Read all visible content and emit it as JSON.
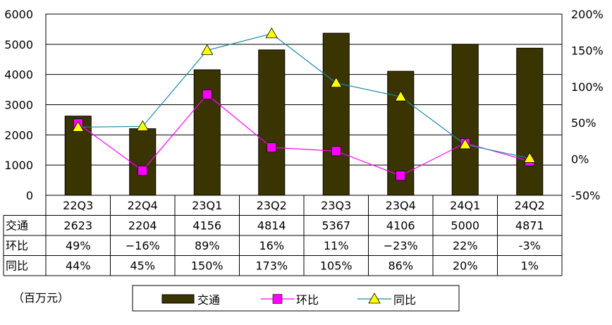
{
  "chart_data": {
    "type": "bar+line",
    "categories": [
      "22Q3",
      "22Q4",
      "23Q1",
      "23Q2",
      "23Q3",
      "23Q4",
      "24Q1",
      "24Q2"
    ],
    "series": [
      {
        "name": "交通",
        "type": "bar",
        "axis": "left",
        "values": [
          2623,
          2204,
          4156,
          4814,
          5367,
          4106,
          5000,
          4871
        ],
        "labels": [
          "2623",
          "2204",
          "4156",
          "4814",
          "5367",
          "4106",
          "5000",
          "4871"
        ],
        "color": "#3a3400"
      },
      {
        "name": "环比",
        "type": "line",
        "axis": "right",
        "marker": "square",
        "values": [
          49,
          -16,
          89,
          16,
          11,
          -23,
          22,
          -3
        ],
        "labels": [
          "49%",
          "−16%",
          "89%",
          "16%",
          "11%",
          "−23%",
          "22%",
          "-3%"
        ],
        "color": "#ff00ff"
      },
      {
        "name": "同比",
        "type": "line",
        "axis": "right",
        "marker": "triangle",
        "values": [
          44,
          45,
          150,
          173,
          105,
          86,
          20,
          1
        ],
        "labels": [
          "44%",
          "45%",
          "150%",
          "173%",
          "105%",
          "86%",
          "20%",
          "1%"
        ],
        "color": "#1a8aa8",
        "marker_color": "#ffff00"
      }
    ],
    "left_axis": {
      "ylim": [
        0,
        6000
      ],
      "ticks": [
        "0",
        "1000",
        "2000",
        "3000",
        "4000",
        "5000",
        "6000"
      ]
    },
    "right_axis": {
      "ylim": [
        -50,
        200
      ],
      "ticks": [
        "-50%",
        "0%",
        "50%",
        "100%",
        "150%",
        "200%"
      ]
    },
    "grid": true,
    "unit_label": "（百万元）",
    "legend": [
      "交通",
      "环比",
      "同比"
    ],
    "legend_position": "bottom"
  }
}
